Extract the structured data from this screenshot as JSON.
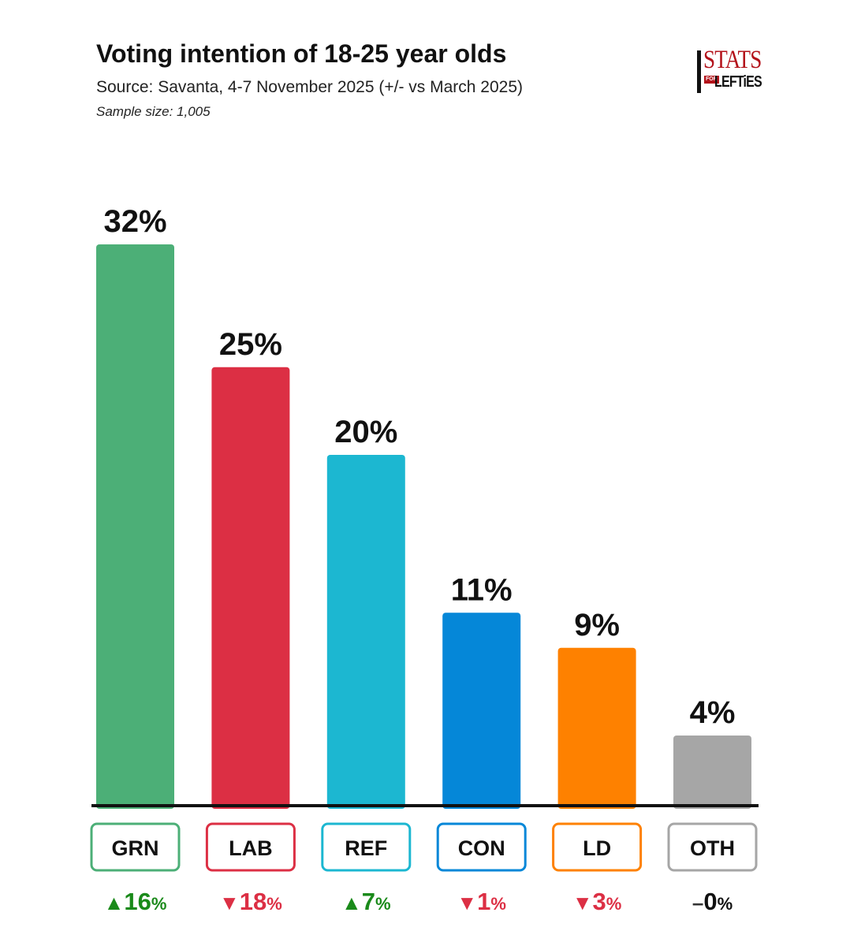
{
  "header": {
    "title": "Voting intention of 18-25 year olds",
    "subtitle": "Source: Savanta, 4-7 November 2025 (+/- vs March 2025)",
    "sample": "Sample size: 1,005"
  },
  "logo": {
    "line1": "STATS",
    "line2": "FOR",
    "line3": "LEFTiES"
  },
  "colors": {
    "up": "#1a8a1a",
    "down": "#dc2f44",
    "neutral": "#333333"
  },
  "chart_data": {
    "type": "bar",
    "title": "Voting intention of 18-25 year olds",
    "xlabel": "",
    "ylabel": "",
    "ylim": [
      0,
      32
    ],
    "categories": [
      "GRN",
      "LAB",
      "REF",
      "CON",
      "LD",
      "OTH"
    ],
    "values": [
      32,
      25,
      20,
      11,
      9,
      4
    ],
    "value_labels": [
      "32%",
      "25%",
      "20%",
      "11%",
      "9%",
      "4%"
    ],
    "changes": [
      16,
      -18,
      7,
      -1,
      -3,
      0
    ],
    "change_labels": [
      {
        "arrow": "▲",
        "num": "16",
        "pct": "%"
      },
      {
        "arrow": "▼",
        "num": "18",
        "pct": "%"
      },
      {
        "arrow": "▲",
        "num": "7",
        "pct": "%"
      },
      {
        "arrow": "▼",
        "num": "1",
        "pct": "%"
      },
      {
        "arrow": "▼",
        "num": "3",
        "pct": "%"
      },
      {
        "arrow": "–",
        "num": "0",
        "pct": "%"
      }
    ],
    "colors": [
      "#4caf77",
      "#dc2f44",
      "#1cb7d1",
      "#0587d8",
      "#fe8100",
      "#a6a6a6"
    ],
    "grid": false,
    "legend": "none"
  }
}
